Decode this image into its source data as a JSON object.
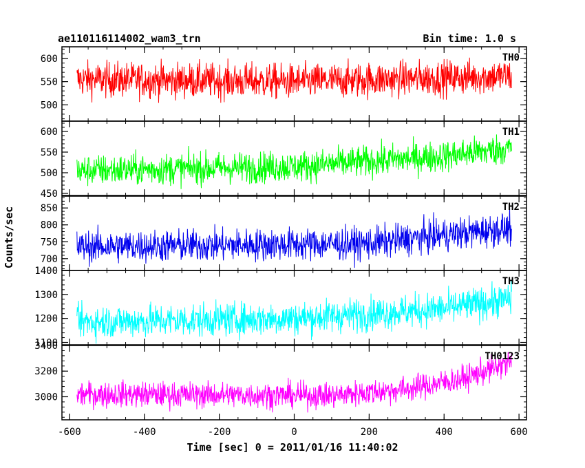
{
  "header": {
    "title": "ae110116114002_wam3_trn",
    "bin_time": "Bin time: 1.0 s"
  },
  "chart_data": {
    "type": "line",
    "title": "ae110116114002_wam3_trn",
    "xlabel": "Time [sec] 0 = 2011/01/16 11:40:02",
    "ylabel": "Counts/sec",
    "xlim": [
      -620,
      620
    ],
    "x_ticks": [
      -600,
      -400,
      -200,
      0,
      200,
      400,
      600
    ],
    "x_range_data": [
      -580,
      580
    ],
    "grid": false,
    "panels": [
      {
        "name": "TH0",
        "color": "#ff0000",
        "ylim": [
          465,
          625
        ],
        "y_ticks": [
          500,
          550,
          600
        ],
        "baseline_trend": [
          [
            -580,
            555
          ],
          [
            0,
            550
          ],
          [
            580,
            562
          ]
        ],
        "noise_amplitude": 30
      },
      {
        "name": "TH1",
        "color": "#00ff00",
        "ylim": [
          445,
          625
        ],
        "y_ticks": [
          450,
          500,
          550,
          600
        ],
        "baseline_trend": [
          [
            -580,
            505
          ],
          [
            0,
            515
          ],
          [
            400,
            540
          ],
          [
            580,
            560
          ]
        ],
        "noise_amplitude": 30
      },
      {
        "name": "TH2",
        "color": "#0000ee",
        "ylim": [
          665,
          885
        ],
        "y_ticks": [
          700,
          750,
          800,
          850
        ],
        "baseline_trend": [
          [
            -580,
            735
          ],
          [
            200,
            745
          ],
          [
            400,
            770
          ],
          [
            580,
            790
          ]
        ],
        "noise_amplitude": 38
      },
      {
        "name": "TH3",
        "color": "#00ffff",
        "ylim": [
          1090,
          1400
        ],
        "y_ticks": [
          1100,
          1200,
          1300,
          1400
        ],
        "baseline_trend": [
          [
            -580,
            1185
          ],
          [
            0,
            1200
          ],
          [
            400,
            1240
          ],
          [
            580,
            1280
          ]
        ],
        "noise_amplitude": 55
      },
      {
        "name": "TH0123",
        "color": "#ff00ff",
        "ylim": [
          2820,
          3400
        ],
        "y_ticks": [
          3000,
          3200,
          3400
        ],
        "baseline_trend": [
          [
            -580,
            3020
          ],
          [
            100,
            3010
          ],
          [
            300,
            3060
          ],
          [
            450,
            3140
          ],
          [
            580,
            3270
          ]
        ],
        "noise_amplitude": 80
      }
    ]
  }
}
